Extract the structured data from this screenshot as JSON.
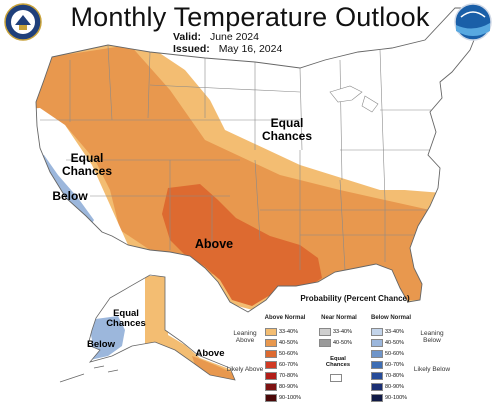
{
  "header": {
    "title": "Monthly Temperature Outlook",
    "valid_label": "Valid:",
    "valid_value": "June 2024",
    "issued_label": "Issued:",
    "issued_value": "May 16, 2024"
  },
  "logos": {
    "left": "doc-seal-icon",
    "right": "noaa-logo-icon"
  },
  "map_labels": {
    "equal_chances_ne": "Equal Chances",
    "equal_chances_ca": "Equal Chances",
    "below_ca": "Below",
    "above_tx": "Above",
    "equal_chances_ak": "Equal Chances",
    "below_ak": "Below",
    "above_ak": "Above"
  },
  "legend": {
    "title": "Probability (Percent Chance)",
    "above_header": "Above Normal",
    "near_header": "Near Normal",
    "below_header": "Below Normal",
    "leaning_above": "Leaning Above",
    "likely_above": "Likely Above",
    "leaning_below": "Leaning Below",
    "likely_below": "Likely Below",
    "equal_chances": "Equal Chances",
    "above_bins": [
      {
        "label": "33-40%",
        "color": "#f3bd72"
      },
      {
        "label": "40-50%",
        "color": "#e8984e"
      },
      {
        "label": "50-60%",
        "color": "#dd6a30"
      },
      {
        "label": "60-70%",
        "color": "#d13a24"
      },
      {
        "label": "70-80%",
        "color": "#b21d18"
      },
      {
        "label": "80-90%",
        "color": "#7d1212"
      },
      {
        "label": "90-100%",
        "color": "#4a0707"
      }
    ],
    "near_bins": [
      {
        "label": "33-40%",
        "color": "#cfcfcf"
      },
      {
        "label": "40-50%",
        "color": "#9a9a9a"
      }
    ],
    "below_bins": [
      {
        "label": "33-40%",
        "color": "#c3d4ea"
      },
      {
        "label": "40-50%",
        "color": "#9cb7dc"
      },
      {
        "label": "50-60%",
        "color": "#6f95c9"
      },
      {
        "label": "60-70%",
        "color": "#3e6eb4"
      },
      {
        "label": "70-80%",
        "color": "#264b98"
      },
      {
        "label": "80-90%",
        "color": "#1b2f73"
      },
      {
        "label": "90-100%",
        "color": "#101a45"
      }
    ]
  }
}
